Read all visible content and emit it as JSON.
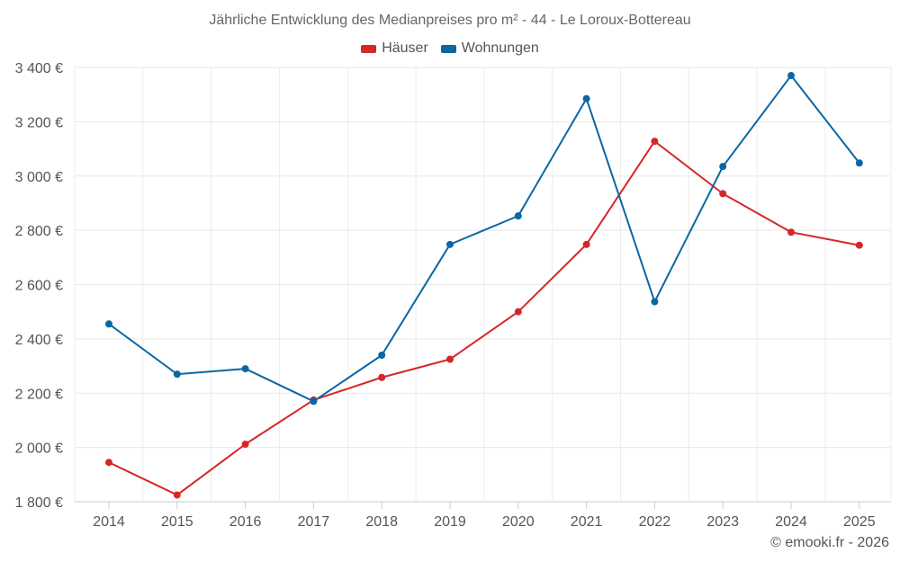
{
  "chart_data": {
    "type": "line",
    "title": "Jährliche Entwicklung des Medianpreises pro m² - 44 - Le Loroux-Bottereau",
    "categories": [
      "2014",
      "2015",
      "2016",
      "2017",
      "2018",
      "2019",
      "2020",
      "2021",
      "2022",
      "2023",
      "2024",
      "2025"
    ],
    "series": [
      {
        "name": "Häuser",
        "color": "#d62728",
        "values": [
          1945,
          1825,
          2012,
          2175,
          2258,
          2325,
          2500,
          2748,
          3128,
          2935,
          2793,
          2745
        ]
      },
      {
        "name": "Wohnungen",
        "color": "#0a67a3",
        "values": [
          2455,
          2270,
          2290,
          2170,
          2340,
          2748,
          2853,
          3285,
          2537,
          3035,
          3370,
          3048
        ]
      }
    ],
    "y_ticks": [
      1800,
      2000,
      2200,
      2400,
      2600,
      2800,
      3000,
      3200,
      3400
    ],
    "y_tick_labels": [
      "1 800 €",
      "2 000 €",
      "2 200 €",
      "2 400 €",
      "2 600 €",
      "2 800 €",
      "3 000 €",
      "3 200 €",
      "3 400 €"
    ],
    "ylim": [
      1800,
      3400
    ],
    "xlabel": "",
    "ylabel": "",
    "grid": true,
    "legend_position": "top-center"
  },
  "credit": "© emooki.fr - 2026"
}
